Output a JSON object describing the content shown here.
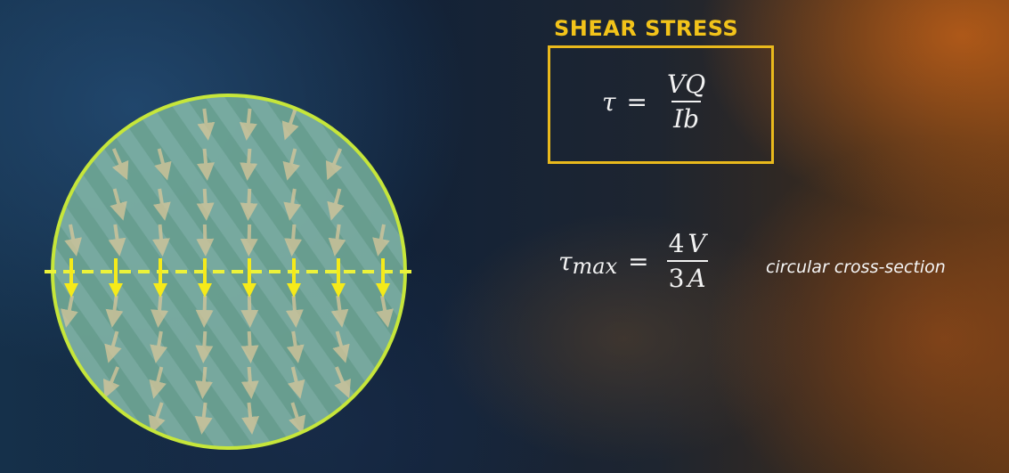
{
  "title": "SHEAR STRESS",
  "formula1": {
    "lhs": "τ",
    "equals": "=",
    "numerator": "VQ",
    "denominator": "Ib"
  },
  "formula2": {
    "lhs": "τ",
    "lhs_sub": "max",
    "equals": "=",
    "num1": "4",
    "den1": "3",
    "num2": "V",
    "den2": "A"
  },
  "note": "circular cross-section",
  "colors": {
    "title": "#f2c31a",
    "box_border": "#e9b91c",
    "circle_outline": "#c6e63a",
    "circle_fill": "#7fb3a6",
    "neutral_axis": "#ecf23a",
    "axis_arrows": "#f5ea1a",
    "field_arrows": "#d8c79a"
  }
}
